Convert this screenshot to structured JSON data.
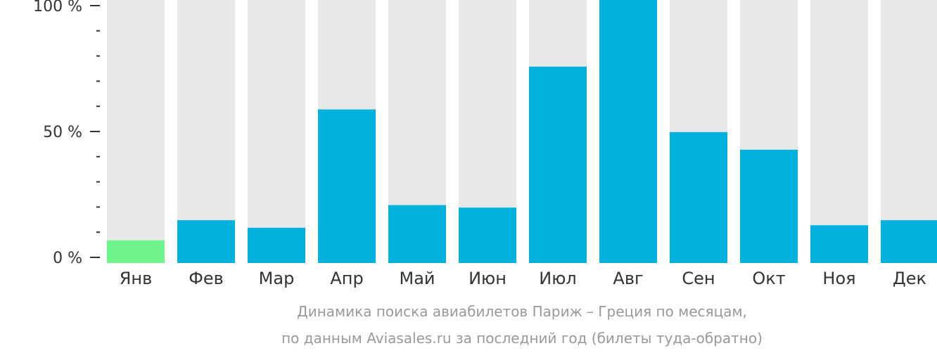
{
  "chart_data": {
    "type": "bar",
    "categories": [
      "Янв",
      "Фев",
      "Мар",
      "Апр",
      "Май",
      "Июн",
      "Июл",
      "Авг",
      "Сен",
      "Окт",
      "Ноя",
      "Дек"
    ],
    "values": [
      9,
      17,
      14,
      61,
      23,
      22,
      78,
      105,
      52,
      45,
      15,
      17
    ],
    "highlight_index": 0,
    "ylim": [
      0,
      100
    ],
    "yticks": [
      0,
      50,
      100
    ],
    "ytick_labels": [
      "0 %",
      "50 %",
      "100 %"
    ],
    "minor_ticks_between": 4,
    "background_bars": true,
    "caption_lines": [
      "Динамика поиска авиабилетов Париж – Греция по месяцам,",
      "по данным Aviasales.ru за последний год (билеты туда-обратно)"
    ],
    "colors": {
      "bar": "#00b1dd",
      "highlight": "#6ef48a",
      "background_bar": "#e8e8e8",
      "axis": "#333333",
      "caption": "#999999"
    }
  }
}
